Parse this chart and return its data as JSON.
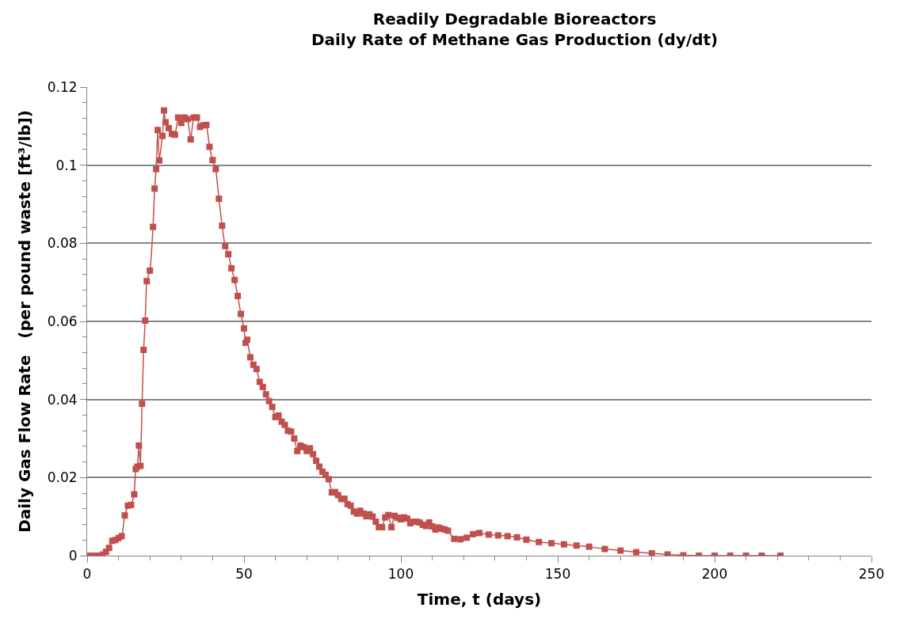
{
  "chart_data": {
    "type": "line",
    "title": "Readily Degradable Bioreactors\nDaily Rate of Methane Gas Production (dy/dt)",
    "xlabel": "Time, t (days)",
    "ylabel": "Daily Gas Flow Rate   (per pound waste [ft³/lb])",
    "xlim": [
      0,
      250
    ],
    "xticks": [
      0,
      50,
      100,
      150,
      200,
      250
    ],
    "ylim": [
      0,
      0.12
    ],
    "yticks": [
      0,
      0.02,
      0.04,
      0.06,
      0.08,
      0.1,
      0.12
    ],
    "grid": "y",
    "marker": "square",
    "line_style": "solid",
    "series": [
      {
        "color": "#c0504d",
        "x": [
          0,
          1,
          2,
          3,
          4,
          5,
          6,
          7,
          8,
          9,
          10,
          11,
          12,
          13,
          14,
          15,
          15.5,
          16,
          16.5,
          17,
          17.5,
          18,
          18.5,
          19,
          20,
          21,
          21.5,
          22,
          22.5,
          23,
          24,
          24.5,
          25,
          26,
          27,
          28,
          29,
          30,
          31,
          32,
          33,
          34,
          35,
          36,
          37,
          38,
          39,
          40,
          41,
          42,
          43,
          44,
          45,
          46,
          47,
          48,
          49,
          50,
          50.5,
          51,
          52,
          53,
          54,
          55,
          56,
          57,
          58,
          59,
          60,
          61,
          62,
          63,
          64,
          65,
          66,
          67,
          68,
          69,
          70,
          71,
          72,
          73,
          74,
          75,
          76,
          77,
          78,
          79,
          80,
          81,
          82,
          83,
          84,
          85,
          86,
          87,
          88,
          89,
          90,
          91,
          92,
          93,
          94,
          95,
          96,
          97,
          98,
          99,
          100,
          101,
          102,
          103,
          104,
          105,
          106,
          107,
          108,
          109,
          110,
          111,
          112,
          113,
          114,
          115,
          117,
          119,
          121,
          123,
          125,
          128,
          131,
          134,
          137,
          140,
          144,
          148,
          152,
          156,
          160,
          165,
          170,
          175,
          180,
          185,
          190,
          195,
          200,
          205,
          210,
          215,
          221
        ],
        "values": [
          0,
          0,
          0,
          0,
          0,
          0.0003,
          0.001,
          0.002,
          0.0038,
          0.004,
          0.0045,
          0.005,
          0.0103,
          0.0128,
          0.013,
          0.0157,
          0.0222,
          0.0228,
          0.0282,
          0.023,
          0.0389,
          0.0527,
          0.0602,
          0.0703,
          0.073,
          0.0842,
          0.094,
          0.099,
          0.109,
          0.1012,
          0.1075,
          0.114,
          0.111,
          0.1095,
          0.108,
          0.1078,
          0.1122,
          0.1108,
          0.1122,
          0.1118,
          0.1066,
          0.1122,
          0.1122,
          0.1098,
          0.1102,
          0.1103,
          0.1047,
          0.1013,
          0.099,
          0.0914,
          0.0845,
          0.0793,
          0.0772,
          0.0736,
          0.0706,
          0.0665,
          0.0619,
          0.0582,
          0.0545,
          0.0553,
          0.0508,
          0.0489,
          0.0478,
          0.0445,
          0.0432,
          0.0413,
          0.0396,
          0.0381,
          0.0355,
          0.0359,
          0.0343,
          0.0335,
          0.032,
          0.0318,
          0.03,
          0.0268,
          0.0282,
          0.0278,
          0.0268,
          0.0275,
          0.026,
          0.0243,
          0.0228,
          0.0215,
          0.0207,
          0.0196,
          0.0162,
          0.0163,
          0.0155,
          0.0145,
          0.0146,
          0.0132,
          0.0128,
          0.0113,
          0.0108,
          0.0115,
          0.0108,
          0.0101,
          0.0106,
          0.01,
          0.0087,
          0.0073,
          0.0073,
          0.0098,
          0.0104,
          0.0073,
          0.0102,
          0.0097,
          0.0093,
          0.0098,
          0.0095,
          0.0083,
          0.0087,
          0.0087,
          0.0085,
          0.0079,
          0.0076,
          0.0085,
          0.0075,
          0.0067,
          0.0072,
          0.0069,
          0.0067,
          0.0064,
          0.0043,
          0.0042,
          0.0046,
          0.0055,
          0.0058,
          0.0054,
          0.0052,
          0.005,
          0.0047,
          0.0041,
          0.0035,
          0.0032,
          0.0029,
          0.0026,
          0.0023,
          0.0017,
          0.0013,
          0.0009,
          0.0006,
          0.0003,
          0.0001,
          0,
          0,
          0,
          0,
          0,
          0
        ]
      }
    ]
  }
}
